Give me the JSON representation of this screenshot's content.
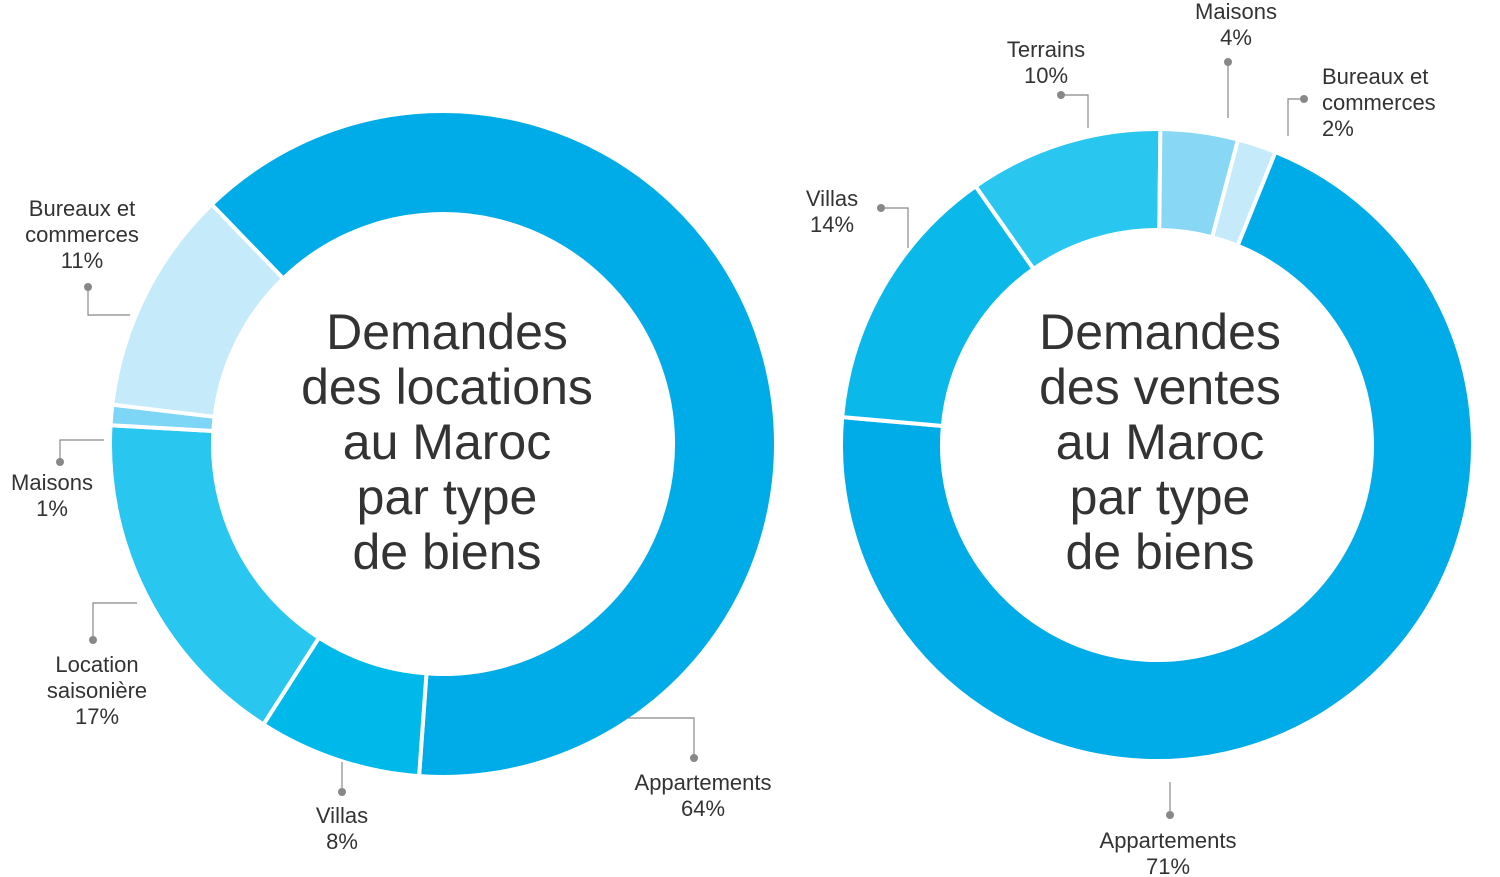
{
  "chart_data": [
    {
      "type": "donut",
      "title": [
        "Demandes",
        "des locations",
        "au Maroc",
        "par type",
        "de biens"
      ],
      "categories": [
        "Appartements",
        "Villas",
        "Location saisonière",
        "Maisons",
        "Bureaux et commerces"
      ],
      "values": [
        64,
        8,
        17,
        1,
        11
      ],
      "value_labels": [
        "64%",
        "8%",
        "17%",
        "1%",
        "11%"
      ],
      "colors": [
        "#00ace7",
        "#00b9eb",
        "#29c6f0",
        "#7dd6f5",
        "#c5eaf9"
      ]
    },
    {
      "type": "donut",
      "title": [
        "Demandes",
        "des ventes",
        "au Maroc",
        "par type",
        "de biens"
      ],
      "categories": [
        "Appartements",
        "Villas",
        "Terrains",
        "Maisons",
        "Bureaux et commerces"
      ],
      "values": [
        71,
        14,
        10,
        4,
        2
      ],
      "value_labels": [
        "71%",
        "14%",
        "10%",
        "4%",
        "2%"
      ],
      "colors": [
        "#00ace7",
        "#0ab9ea",
        "#29c6f0",
        "#88d8f5",
        "#c5eaf9"
      ]
    }
  ]
}
